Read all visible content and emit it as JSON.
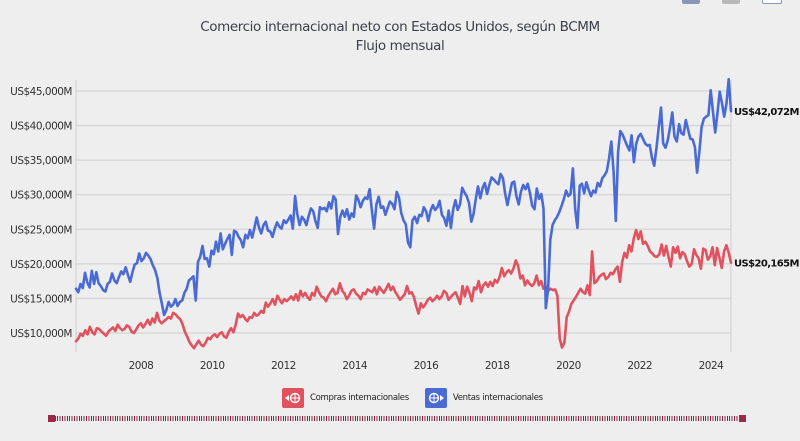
{
  "window_controls": [
    "minimize-icon",
    "maximize-icon",
    "restore-icon"
  ],
  "chart_data": {
    "type": "line",
    "title": "Comercio internacional neto con Estados Unidos, según BCMM",
    "subtitle": "Flujo mensual",
    "xlabel": "",
    "ylabel": "",
    "x_start": "2006-03",
    "x_end": "2024-10",
    "x_ticks": [
      "2008",
      "2010",
      "2012",
      "2014",
      "2016",
      "2018",
      "2020",
      "2022",
      "2024"
    ],
    "y_ticks": [
      "US$10,000M",
      "US$15,000M",
      "US$20,000M",
      "US$25,000M",
      "US$30,000M",
      "US$35,000M",
      "US$40,000M",
      "US$45,000M"
    ],
    "ylim": [
      8000,
      46500
    ],
    "grid": true,
    "legend_position": "bottom-center",
    "series": [
      {
        "name": "Compras internacionales",
        "color": "#e0525e",
        "end_label": "US$20,165M",
        "values": [
          8800,
          9200,
          9900,
          9600,
          10400,
          9800,
          10900,
          10100,
          9800,
          10700,
          10600,
          10200,
          9900,
          9600,
          10200,
          10500,
          10800,
          10300,
          11200,
          10700,
          10400,
          10600,
          11100,
          10900,
          10200,
          10000,
          10500,
          11100,
          11400,
          10800,
          11300,
          11900,
          11200,
          12100,
          11500,
          12900,
          11800,
          11400,
          11700,
          12000,
          12300,
          12100,
          12900,
          12700,
          12300,
          12000,
          11300,
          10200,
          9500,
          8700,
          8200,
          7800,
          8400,
          8900,
          8300,
          8100,
          8600,
          9300,
          9100,
          9600,
          9800,
          9400,
          9900,
          10100,
          9500,
          9300,
          10200,
          10700,
          10100,
          11200,
          12800,
          12300,
          12600,
          12100,
          11700,
          12300,
          12200,
          12900,
          12500,
          12700,
          13200,
          12900,
          14400,
          13800,
          14300,
          14900,
          14100,
          15400,
          14800,
          14300,
          14900,
          14600,
          14900,
          15300,
          14800,
          15600,
          14700,
          16100,
          15300,
          15800,
          15200,
          14800,
          15800,
          15400,
          16700,
          15900,
          15300,
          15100,
          14600,
          15400,
          15900,
          16400,
          15600,
          15800,
          17200,
          16100,
          15700,
          14900,
          15400,
          16100,
          16300,
          15700,
          15400,
          14900,
          15800,
          15600,
          16300,
          16100,
          15900,
          16600,
          15600,
          16700,
          16200,
          15800,
          16400,
          17100,
          16200,
          16700,
          15900,
          15400,
          14800,
          15200,
          15600,
          16800,
          15700,
          15900,
          15200,
          13900,
          12800,
          14300,
          13700,
          14200,
          14800,
          15100,
          14600,
          14900,
          15400,
          14900,
          15300,
          16100,
          15800,
          14800,
          15200,
          15600,
          15900,
          15100,
          14200,
          16800,
          15300,
          16700,
          15800,
          14600,
          16600,
          16300,
          17500,
          15900,
          16900,
          17300,
          16700,
          17400,
          16800,
          17700,
          17300,
          18100,
          19400,
          18200,
          18800,
          19100,
          18600,
          19300,
          20500,
          19700,
          17900,
          18300,
          16900,
          17600,
          17100,
          16800,
          17200,
          18300,
          16900,
          17500,
          16400,
          16700,
          16100,
          16400,
          16200,
          16300,
          15400,
          9200,
          7900,
          8600,
          12300,
          13100,
          14200,
          14700,
          15200,
          15800,
          16400,
          15900,
          15700,
          16900,
          15500,
          21800,
          17200,
          17500,
          18100,
          18400,
          18600,
          17800,
          18100,
          18700,
          18500,
          19200,
          19600,
          17400,
          20300,
          21600,
          20900,
          22700,
          21800,
          23700,
          24900,
          23600,
          24700,
          22900,
          23200,
          22600,
          21800,
          21500,
          21100,
          21000,
          21400,
          22800,
          21200,
          22600,
          21000,
          19600,
          22400,
          21600,
          22500,
          20800,
          21700,
          21400,
          20400,
          19600,
          20000,
          22100,
          21300,
          20800,
          19300,
          22200,
          22000,
          20600,
          21100,
          22400,
          19800,
          22300,
          20900,
          19400,
          21800,
          22700,
          21600,
          20165
        ]
      },
      {
        "name": "Ventas internacionales",
        "color": "#4a6ad4",
        "end_label": "US$42,072M",
        "values": [
          16400,
          15900,
          17100,
          16500,
          18700,
          17300,
          16600,
          19000,
          17100,
          18800,
          17200,
          16800,
          16200,
          16000,
          17100,
          17400,
          18600,
          17600,
          17200,
          18100,
          18900,
          18500,
          19500,
          18400,
          17400,
          18800,
          19900,
          20100,
          21500,
          20400,
          20800,
          21600,
          21200,
          20700,
          19800,
          19100,
          18000,
          15800,
          14300,
          12600,
          13300,
          14500,
          13800,
          14100,
          14900,
          13900,
          14500,
          14700,
          15800,
          16400,
          17600,
          17900,
          18200,
          14700,
          20300,
          21000,
          22600,
          20700,
          20800,
          19600,
          21900,
          21400,
          23200,
          21800,
          24400,
          22100,
          22900,
          23600,
          24200,
          21300,
          24800,
          24600,
          23900,
          23400,
          22400,
          24200,
          23700,
          24900,
          23800,
          25200,
          26700,
          25300,
          24400,
          25600,
          26100,
          24800,
          24700,
          23900,
          25100,
          26000,
          25400,
          25100,
          26300,
          25900,
          26400,
          27000,
          25100,
          29800,
          27200,
          25600,
          26800,
          26400,
          25600,
          26900,
          28000,
          27600,
          26200,
          25200,
          28200,
          27900,
          28100,
          27600,
          28900,
          28000,
          29800,
          29300,
          24300,
          26800,
          27700,
          26800,
          27900,
          26400,
          27300,
          26800,
          29900,
          29300,
          28200,
          29100,
          29600,
          29400,
          30800,
          27700,
          25100,
          28600,
          29700,
          28100,
          28300,
          27100,
          28100,
          29000,
          28700,
          27900,
          30400,
          29600,
          27400,
          26300,
          25700,
          23100,
          22400,
          26300,
          26800,
          25900,
          27100,
          26900,
          28200,
          27600,
          26200,
          27700,
          28500,
          27800,
          28200,
          29100,
          27100,
          26600,
          25500,
          27700,
          25200,
          27900,
          29200,
          27800,
          28600,
          31000,
          30300,
          29800,
          28800,
          26100,
          27200,
          29400,
          31200,
          29500,
          31000,
          31700,
          30100,
          31400,
          32500,
          32200,
          31800,
          31500,
          33000,
          32400,
          30200,
          28500,
          30100,
          31700,
          31900,
          29800,
          28600,
          30400,
          31400,
          30800,
          31600,
          30200,
          28400,
          27900,
          30900,
          29400,
          30100,
          28000,
          13600,
          16300,
          23500,
          25600,
          26300,
          26800,
          27500,
          28400,
          29400,
          30600,
          29800,
          30100,
          33800,
          27900,
          25200,
          31300,
          31600,
          30200,
          31800,
          30700,
          29800,
          30600,
          30300,
          31700,
          31200,
          32400,
          32800,
          33400,
          35200,
          37700,
          33300,
          26200,
          36200,
          39200,
          38700,
          37900,
          37100,
          36400,
          38600,
          34700,
          37300,
          38400,
          38800,
          38100,
          37400,
          37100,
          37200,
          35400,
          34200,
          36800,
          39700,
          42600,
          37400,
          36800,
          37900,
          39700,
          41900,
          38400,
          37700,
          40200,
          38900,
          38700,
          40800,
          39400,
          38100,
          38000,
          36900,
          33200,
          36300,
          39800,
          41000,
          41300,
          41500,
          45100,
          42100,
          39000,
          41700,
          44900,
          43200,
          41300,
          43200,
          46700,
          42072
        ]
      }
    ]
  },
  "legend": [
    {
      "label": "Compras internacionales",
      "icon": "globe-arrow-left-icon",
      "color": "#e0525e"
    },
    {
      "label": "Ventas internacionales",
      "icon": "globe-arrow-right-icon",
      "color": "#4a6ad4"
    }
  ]
}
